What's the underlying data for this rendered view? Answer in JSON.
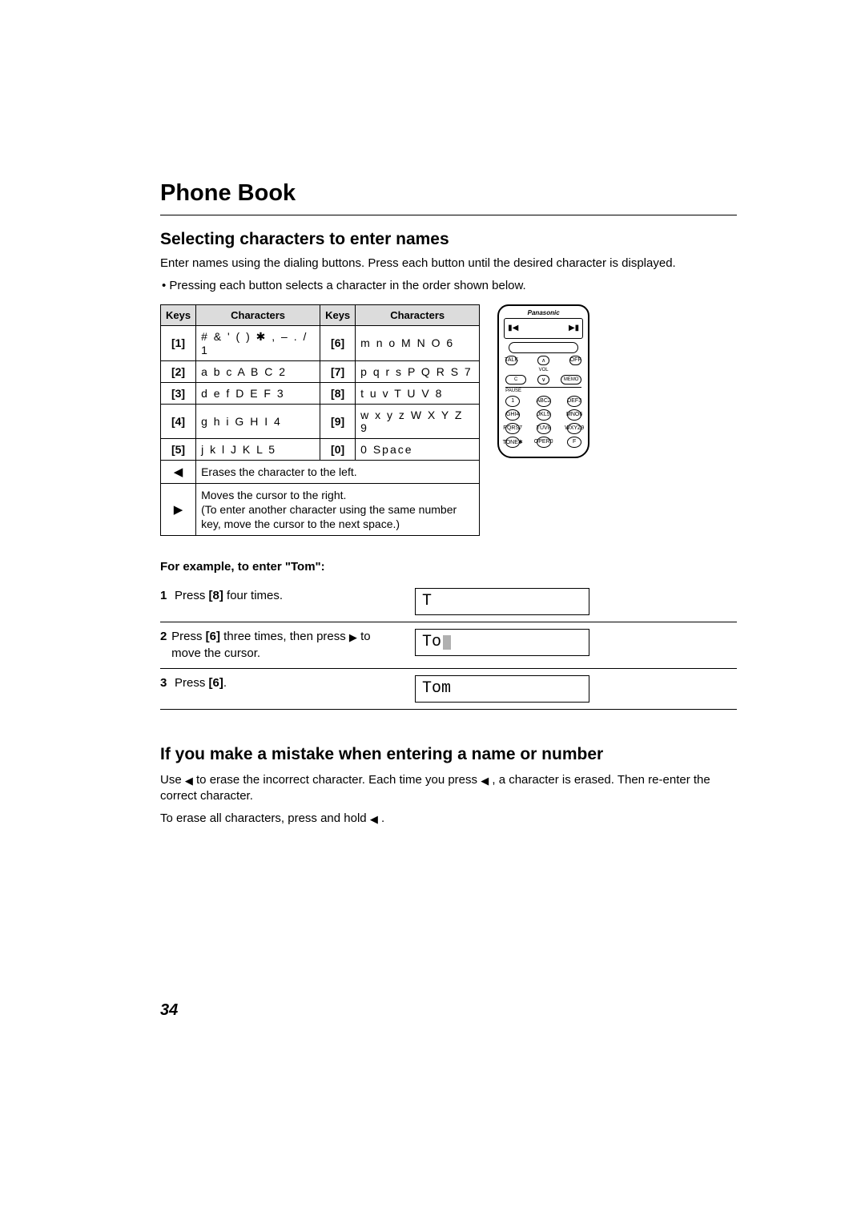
{
  "title": "Phone Book",
  "section1": {
    "heading": "Selecting characters to enter names",
    "intro": "Enter names using the dialing buttons. Press each button until the desired character is displayed.",
    "bullet": "• Pressing each button selects a character in the order shown below."
  },
  "table": {
    "header_keys": "Keys",
    "header_chars": "Characters",
    "rows": [
      {
        "k1": "[1]",
        "c1": "# & ' ( ) ✱ , – . / 1",
        "k2": "[6]",
        "c2": "m n o M N O 6"
      },
      {
        "k1": "[2]",
        "c1": "a b c A B C 2",
        "k2": "[7]",
        "c2": "p q r s P Q R S 7"
      },
      {
        "k1": "[3]",
        "c1": "d e f D E F 3",
        "k2": "[8]",
        "c2": "t u v T U V 8"
      },
      {
        "k1": "[4]",
        "c1": "g h i G H I 4",
        "k2": "[9]",
        "c2": "w x y z W X Y Z 9"
      },
      {
        "k1": "[5]",
        "c1": "j k l J K L 5",
        "k2": "[0]",
        "c2": "0 Space"
      }
    ],
    "arrow_left_desc": "Erases the character to the left.",
    "arrow_right_desc": "Moves the cursor to the right.\n(To enter another character using the same number key, move the cursor to the next space.)"
  },
  "phone": {
    "brand": "Panasonic",
    "labels": {
      "talk": "TALK",
      "vol": "VOL",
      "off": "OFF",
      "c": "C",
      "memo": "MEMO",
      "pause": "PAUSE"
    },
    "keys": [
      "1",
      "ABC2",
      "DEF3",
      "GHI4",
      "JKL5",
      "MNO6",
      "PQRS7",
      "TUV8",
      "WXYZ9",
      "TONE✱",
      "OPER0",
      "F"
    ]
  },
  "example": {
    "heading": "For example, to enter \"Tom\":",
    "steps": [
      {
        "n": "1",
        "pre": "Press ",
        "bold1": "[8]",
        "post": " four times.",
        "display": "T",
        "cursor": false
      },
      {
        "n": "2",
        "pre": "Press ",
        "bold1": "[6]",
        "mid": " three times, then press ",
        "arrow_right": true,
        "post2": " to move the cursor.",
        "display": "To",
        "cursor": true
      },
      {
        "n": "3",
        "pre": "Press ",
        "bold1": "[6]",
        "post": ".",
        "display": "Tom",
        "cursor": false
      }
    ]
  },
  "section2": {
    "heading": "If you make a mistake when entering a name or number",
    "p1a": "Use ",
    "p1b": " to erase the incorrect character. Each time you press ",
    "p1c": " , a character is erased. Then re-enter the correct character.",
    "p2a": "To erase all characters, press and hold ",
    "p2b": " ."
  },
  "page_number": "34"
}
